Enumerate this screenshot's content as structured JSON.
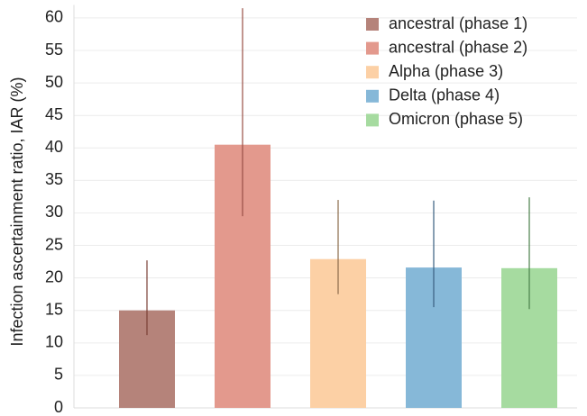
{
  "chart_data": {
    "type": "bar",
    "y_label": "Infection ascertainment ratio, IAR (%)",
    "series": [
      {
        "name": "ancestral (phase 1)",
        "color": "#b5837a",
        "error_color": "#7a3f36",
        "values": [
          15
        ],
        "lower": [
          11.2
        ],
        "upper": [
          22.7
        ]
      },
      {
        "name": "ancestral (phase 2)",
        "color": "#e3998d",
        "error_color": "#9a4f45",
        "values": [
          40.5
        ],
        "lower": [
          29.5
        ],
        "upper": [
          61.5
        ]
      },
      {
        "name": "Alpha (phase 3)",
        "color": "#fcd0a5",
        "error_color": "#8a6a4a",
        "values": [
          22.9
        ],
        "lower": [
          17.5
        ],
        "upper": [
          32
        ]
      },
      {
        "name": "Delta (phase 4)",
        "color": "#86b8d8",
        "error_color": "#3a5f80",
        "values": [
          21.6
        ],
        "lower": [
          15.5
        ],
        "upper": [
          31.9
        ]
      },
      {
        "name": "Omicron (phase 5)",
        "color": "#a6dba0",
        "error_color": "#4a7f4a",
        "values": [
          21.5
        ],
        "lower": [
          15.2
        ],
        "upper": [
          32.4
        ]
      }
    ],
    "ylim": [
      0,
      62
    ],
    "yticks": [
      0,
      5,
      10,
      15,
      20,
      25,
      30,
      35,
      40,
      45,
      50,
      55,
      60
    ],
    "grid": true,
    "legend": "top-right"
  }
}
